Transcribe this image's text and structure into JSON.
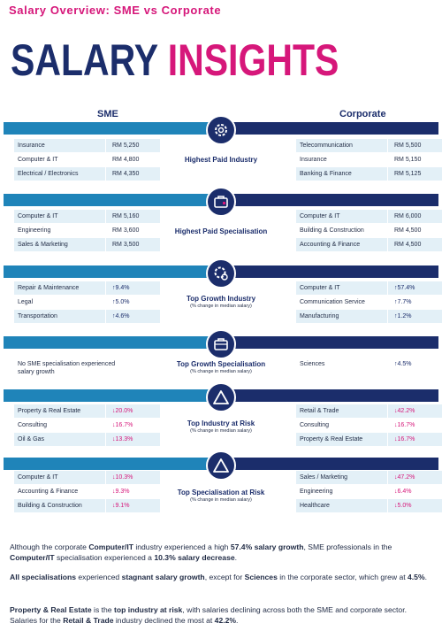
{
  "page": {
    "top_title": "Salary Overview: SME vs Corporate",
    "hero_word1": "SALARY",
    "hero_word2": "INSIGHTS",
    "col_sme": "SME",
    "col_corporate": "Corporate"
  },
  "sections": [
    {
      "icon": "gear-icon",
      "label": "Highest Paid Industry",
      "sub": "",
      "sme": [
        {
          "name": "Insurance",
          "value": "RM 5,250"
        },
        {
          "name": "Computer & IT",
          "value": "RM 4,800"
        },
        {
          "name": "Electrical / Electronics",
          "value": "RM 4,350"
        }
      ],
      "corp": [
        {
          "name": "Telecommunication",
          "value": "RM 5,500"
        },
        {
          "name": "Insurance",
          "value": "RM 5,150"
        },
        {
          "name": "Banking & Finance",
          "value": "RM 5,125"
        }
      ]
    },
    {
      "icon": "briefcase-icon",
      "label": "Highest Paid Specialisation",
      "sub": "",
      "sme": [
        {
          "name": "Computer & IT",
          "value": "RM 5,160"
        },
        {
          "name": "Engineering",
          "value": "RM 3,600"
        },
        {
          "name": "Sales & Marketing",
          "value": "RM 3,500"
        }
      ],
      "corp": [
        {
          "name": "Computer & IT",
          "value": "RM 6,000"
        },
        {
          "name": "Building & Construction",
          "value": "RM 4,500"
        },
        {
          "name": "Accounting & Finance",
          "value": "RM 4,500"
        }
      ]
    },
    {
      "icon": "gear-icon",
      "label": "Top Growth Industry",
      "sub": "(% change in median salary)",
      "sme": [
        {
          "name": "Repair & Maintenance",
          "value": "↑9.4%"
        },
        {
          "name": "Legal",
          "value": "↑5.0%"
        },
        {
          "name": "Transportation",
          "value": "↑4.6%"
        }
      ],
      "corp": [
        {
          "name": "Computer & IT",
          "value": "↑57.4%"
        },
        {
          "name": "Communication Service",
          "value": "↑7.7%"
        },
        {
          "name": "Manufacturing",
          "value": "↑1.2%"
        }
      ]
    },
    {
      "icon": "briefcase-icon",
      "label": "Top Growth Specialisation",
      "sub": "(% change in median salary)",
      "sme_text": "No SME specialisation experienced salary growth",
      "corp_single": {
        "name": "Sciences",
        "value": "↑4.5%"
      }
    },
    {
      "icon": "warning-icon",
      "label": "Top Industry at Risk",
      "sub": "(% change in median salary)",
      "sme": [
        {
          "name": "Property & Real Estate",
          "value": "↓20.0%"
        },
        {
          "name": "Consulting",
          "value": "↓16.7%"
        },
        {
          "name": "Oil & Gas",
          "value": "↓13.3%"
        }
      ],
      "corp": [
        {
          "name": "Retail & Trade",
          "value": "↓42.2%"
        },
        {
          "name": "Consulting",
          "value": "↓16.7%"
        },
        {
          "name": "Property & Real Estate",
          "value": "↓16.7%"
        }
      ]
    },
    {
      "icon": "warning-icon",
      "label": "Top Specialisation at Risk",
      "sub": "(% change in median salary)",
      "sme": [
        {
          "name": "Computer & IT",
          "value": "↓10.3%"
        },
        {
          "name": "Accounting & Finance",
          "value": "↓9.3%"
        },
        {
          "name": "Building & Construction",
          "value": "↓9.1%"
        }
      ],
      "corp": [
        {
          "name": "Sales / Marketing",
          "value": "↓47.2%"
        },
        {
          "name": "Engineering",
          "value": "↓6.4%"
        },
        {
          "name": "Healthcare",
          "value": "↓5.0%"
        }
      ]
    }
  ],
  "paragraphs": {
    "p1": [
      "Although the corporate ",
      "Computer/IT",
      " industry experienced a high ",
      "57.4% salary growth",
      ", SME professionals in the ",
      "Computer/IT",
      " specialisation experienced a ",
      "10.3% salary decrease",
      "."
    ],
    "p2": [
      "All specialisations",
      " experienced ",
      "stagnant salary growth",
      ", except for ",
      "Sciences",
      " in the corporate sector, which grew at ",
      "4.5%",
      "."
    ],
    "p3": [
      "Property & Real Estate",
      " is the ",
      "top industry at risk",
      ", with salaries declining across both the SME and corporate sector. Salaries for the ",
      "Retail & Trade",
      " industry declined the most at ",
      "42.2%",
      "."
    ]
  },
  "colors": {
    "navy": "#1b2d6b",
    "blue": "#1f84b9",
    "magenta": "#d6177a",
    "row_tint": "#e3f0f7"
  }
}
